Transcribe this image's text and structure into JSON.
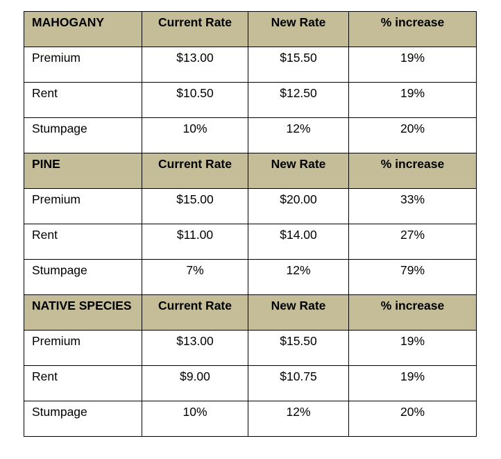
{
  "table": {
    "sections": [
      {
        "name": "MAHOGANY",
        "headers": {
          "current": "Current Rate",
          "new": "New Rate",
          "increase": "% increase"
        },
        "rows": [
          {
            "label": "Premium",
            "current": "$13.00",
            "new": "$15.50",
            "increase": "19%"
          },
          {
            "label": "Rent",
            "current": "$10.50",
            "new": "$12.50",
            "increase": "19%"
          },
          {
            "label": "Stumpage",
            "current": "10%",
            "new": "12%",
            "increase": "20%"
          }
        ]
      },
      {
        "name": "PINE",
        "headers": {
          "current": "Current Rate",
          "new": "New Rate",
          "increase": "% increase"
        },
        "rows": [
          {
            "label": "Premium",
            "current": "$15.00",
            "new": "$20.00",
            "increase": "33%"
          },
          {
            "label": "Rent",
            "current": "$11.00",
            "new": "$14.00",
            "increase": "27%"
          },
          {
            "label": "Stumpage",
            "current": "7%",
            "new": "12%",
            "increase": "79%"
          }
        ]
      },
      {
        "name": "NATIVE SPECIES",
        "headers": {
          "current": "Current Rate",
          "new": "New Rate",
          "increase": "% increase"
        },
        "rows": [
          {
            "label": "Premium",
            "current": "$13.00",
            "new": "$15.50",
            "increase": "19%"
          },
          {
            "label": "Rent",
            "current": "$9.00",
            "new": "$10.75",
            "increase": "19%"
          },
          {
            "label": "Stumpage",
            "current": "10%",
            "new": "12%",
            "increase": "20%"
          }
        ]
      }
    ],
    "header_color": "#c4bd97"
  }
}
